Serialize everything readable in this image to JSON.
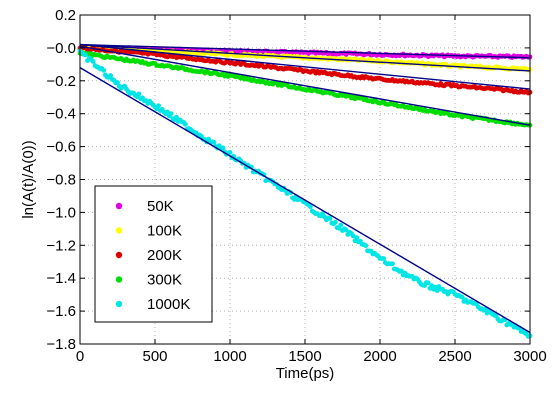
{
  "chart_data": {
    "type": "scatter",
    "xlabel": "Time(ps)",
    "ylabel": "ln(A(t)/A(0))",
    "xlim": [
      0,
      3000
    ],
    "ylim": [
      -1.8,
      0.2
    ],
    "xticks": [
      0,
      500,
      1000,
      1500,
      2000,
      2500,
      3000
    ],
    "xtick_labels": [
      "0",
      "500",
      "1000",
      "1500",
      "2000",
      "2500",
      "3000"
    ],
    "yticks": [
      0.2,
      0.0,
      -0.2,
      -0.4,
      -0.6,
      -0.8,
      -1.0,
      -1.2,
      -1.4,
      -1.6,
      -1.8
    ],
    "ytick_labels": [
      "0.2",
      "−0.0",
      "−0.2",
      "−0.4",
      "−0.6",
      "−0.8",
      "−1.0",
      "−1.2",
      "−1.4",
      "−1.6",
      "−1.8"
    ],
    "grid": true,
    "legend_position": "bottom-left",
    "series": [
      {
        "name": "50K",
        "color": "#e000e0",
        "x": [
          0,
          500,
          1000,
          1500,
          2000,
          2500,
          3000
        ],
        "y": [
          0.0,
          -0.01,
          -0.02,
          -0.03,
          -0.04,
          -0.05,
          -0.055
        ]
      },
      {
        "name": "100K",
        "color": "#ffff00",
        "x": [
          0,
          500,
          1000,
          1500,
          2000,
          2500,
          3000
        ],
        "y": [
          0.0,
          -0.02,
          -0.04,
          -0.06,
          -0.08,
          -0.11,
          -0.13
        ]
      },
      {
        "name": "200K",
        "color": "#dd0000",
        "x": [
          0,
          500,
          1000,
          1500,
          2000,
          2500,
          3000
        ],
        "y": [
          0.0,
          -0.04,
          -0.09,
          -0.14,
          -0.19,
          -0.23,
          -0.27
        ]
      },
      {
        "name": "300K",
        "color": "#00dd00",
        "x": [
          0,
          500,
          1000,
          1500,
          2000,
          2500,
          3000
        ],
        "y": [
          -0.03,
          -0.1,
          -0.17,
          -0.25,
          -0.33,
          -0.41,
          -0.47
        ]
      },
      {
        "name": "1000K",
        "color": "#00e5e5",
        "x": [
          0,
          100,
          250,
          500,
          750,
          1000,
          1250,
          1500,
          1750,
          2000,
          2250,
          2500,
          2750,
          3000
        ],
        "y": [
          -0.03,
          -0.1,
          -0.22,
          -0.35,
          -0.5,
          -0.65,
          -0.8,
          -0.95,
          -1.1,
          -1.28,
          -1.42,
          -1.5,
          -1.62,
          -1.75
        ]
      }
    ],
    "fit_lines": [
      {
        "color": "#00008b",
        "x": [
          0,
          3000
        ],
        "y": [
          0.02,
          -0.06
        ]
      },
      {
        "color": "#00008b",
        "x": [
          0,
          3000
        ],
        "y": [
          0.02,
          -0.14
        ]
      },
      {
        "color": "#00008b",
        "x": [
          0,
          3000
        ],
        "y": [
          0.02,
          -0.25
        ]
      },
      {
        "color": "#00008b",
        "x": [
          0,
          3000
        ],
        "y": [
          0.01,
          -0.47
        ]
      },
      {
        "color": "#00008b",
        "x": [
          0,
          3000
        ],
        "y": [
          -0.12,
          -1.73
        ]
      }
    ]
  }
}
